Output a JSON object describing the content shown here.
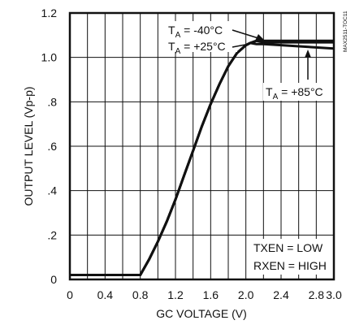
{
  "chart_data": {
    "type": "line",
    "title": "",
    "xlabel": "GC VOLTAGE (V)",
    "ylabel": "OUTPUT LEVEL (Vp-p)",
    "xlim": [
      0,
      3.0
    ],
    "ylim": [
      0,
      1.2
    ],
    "grid": true,
    "xticks": [
      "0",
      "0.4",
      "0.8",
      "1.2",
      "1.6",
      "2.0",
      "2.4",
      "2.8",
      "3.0"
    ],
    "xtick_values": [
      0,
      0.4,
      0.8,
      1.2,
      1.6,
      2.0,
      2.4,
      2.8,
      3.0
    ],
    "yticks": [
      "0",
      ".2",
      ".4",
      ".6",
      ".8",
      "1.0",
      "1.2"
    ],
    "ytick_values": [
      0,
      0.2,
      0.4,
      0.6,
      0.8,
      1.0,
      1.2
    ],
    "x_grid_values": [
      0.2,
      0.4,
      0.6,
      0.8,
      1.0,
      1.2,
      1.4,
      1.6,
      1.8,
      2.0,
      2.2,
      2.4,
      2.6,
      2.8
    ],
    "y_grid_values": [
      0.2,
      0.4,
      0.6,
      0.8,
      1.0
    ],
    "series": [
      {
        "x": [
          0,
          0.8,
          0.9,
          1.0,
          1.1,
          1.2,
          1.3,
          1.4,
          1.5,
          1.6,
          1.7,
          1.8,
          1.9,
          2.0,
          2.05,
          2.12,
          2.2,
          3.0
        ],
        "y": [
          0.02,
          0.02,
          0.09,
          0.17,
          0.26,
          0.36,
          0.47,
          0.58,
          0.69,
          0.79,
          0.88,
          0.96,
          1.02,
          1.055,
          1.065,
          1.075,
          1.075,
          1.075
        ]
      },
      {
        "x": [
          0,
          0.8,
          0.9,
          1.0,
          1.1,
          1.2,
          1.3,
          1.4,
          1.5,
          1.6,
          1.7,
          1.8,
          1.9,
          2.0,
          2.05,
          2.12,
          2.2,
          3.0
        ],
        "y": [
          0.02,
          0.02,
          0.09,
          0.17,
          0.26,
          0.36,
          0.47,
          0.58,
          0.69,
          0.79,
          0.88,
          0.96,
          1.02,
          1.055,
          1.065,
          1.075,
          1.068,
          1.068
        ]
      },
      {
        "x": [
          0,
          0.8,
          0.9,
          1.0,
          1.1,
          1.2,
          1.3,
          1.4,
          1.5,
          1.6,
          1.7,
          1.8,
          1.9,
          2.0,
          2.05,
          2.12,
          2.2,
          3.0
        ],
        "y": [
          0.02,
          0.02,
          0.09,
          0.17,
          0.26,
          0.36,
          0.47,
          0.58,
          0.69,
          0.79,
          0.88,
          0.96,
          1.02,
          1.055,
          1.065,
          1.06,
          1.06,
          1.04
        ]
      }
    ],
    "annotations": {
      "t_minus40": {
        "main": "T",
        "sub": "A",
        "rest": " = -40°C"
      },
      "t_plus25": {
        "main": "T",
        "sub": "A",
        "rest": " = +25°C"
      },
      "t_plus85": {
        "main": "T",
        "sub": "A",
        "rest": " = +85°C"
      },
      "txen": "TXEN = LOW",
      "rxen": "RXEN = HIGH"
    },
    "figure_ref": "MAX2511-TOC11"
  }
}
